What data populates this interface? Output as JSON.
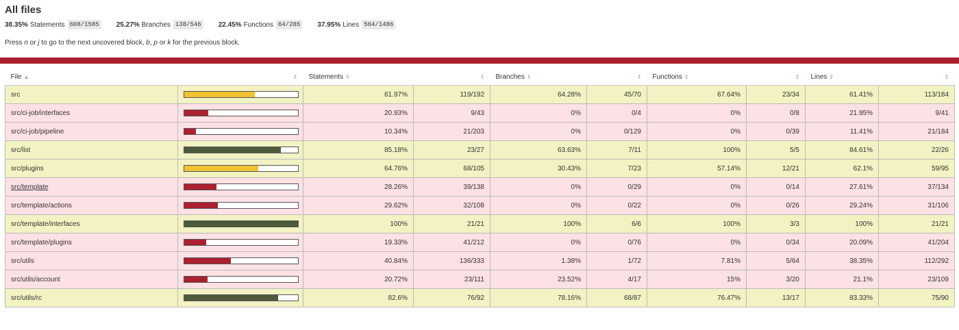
{
  "title": "All files",
  "summary": [
    {
      "pct": "38.35%",
      "label": "Statements",
      "frac": "608/1585"
    },
    {
      "pct": "25.27%",
      "label": "Branches",
      "frac": "138/546"
    },
    {
      "pct": "22.45%",
      "label": "Functions",
      "frac": "64/285"
    },
    {
      "pct": "37.95%",
      "label": "Lines",
      "frac": "564/1486"
    }
  ],
  "hint": {
    "t1": "Press ",
    "k1": "n",
    "t2": " or ",
    "k2": "j",
    "t3": " to go to the next uncovered block, ",
    "k3": "b",
    "t4": ", ",
    "k4": "p",
    "t5": " or ",
    "k5": "k",
    "t6": " for the previous block."
  },
  "columns": {
    "file": "File",
    "statements": "Statements",
    "branches": "Branches",
    "functions": "Functions",
    "lines": "Lines"
  },
  "colors": {
    "high_fill": "#4d5b3b",
    "medium_fill": "#f1c232",
    "low_fill": "#ab2130",
    "high_row": "#f2f2c3",
    "low_row": "#fce1e5",
    "divider": "#ab2130"
  },
  "rows": [
    {
      "file": "src",
      "level": "medium",
      "bar": 0.6197,
      "stmt_pct": "61.97%",
      "stmt_frac": "119/192",
      "br_pct": "64.28%",
      "br_frac": "45/70",
      "fn_pct": "67.64%",
      "fn_frac": "23/34",
      "ln_pct": "61.41%",
      "ln_frac": "113/184",
      "row": "high"
    },
    {
      "file": "src/ci-job/interfaces",
      "level": "low",
      "bar": 0.2093,
      "stmt_pct": "20.93%",
      "stmt_frac": "9/43",
      "br_pct": "0%",
      "br_frac": "0/4",
      "fn_pct": "0%",
      "fn_frac": "0/8",
      "ln_pct": "21.95%",
      "ln_frac": "9/41",
      "row": "low"
    },
    {
      "file": "src/ci-job/pipeline",
      "level": "low",
      "bar": 0.1034,
      "stmt_pct": "10.34%",
      "stmt_frac": "21/203",
      "br_pct": "0%",
      "br_frac": "0/129",
      "fn_pct": "0%",
      "fn_frac": "0/39",
      "ln_pct": "11.41%",
      "ln_frac": "21/184",
      "row": "low"
    },
    {
      "file": "src/list",
      "level": "high",
      "bar": 0.8518,
      "stmt_pct": "85.18%",
      "stmt_frac": "23/27",
      "br_pct": "63.63%",
      "br_frac": "7/11",
      "fn_pct": "100%",
      "fn_frac": "5/5",
      "ln_pct": "84.61%",
      "ln_frac": "22/26",
      "row": "high"
    },
    {
      "file": "src/plugins",
      "level": "medium",
      "bar": 0.6476,
      "stmt_pct": "64.76%",
      "stmt_frac": "68/105",
      "br_pct": "30.43%",
      "br_frac": "7/23",
      "fn_pct": "57.14%",
      "fn_frac": "12/21",
      "ln_pct": "62.1%",
      "ln_frac": "59/95",
      "row": "high"
    },
    {
      "file": "src/template",
      "level": "low",
      "bar": 0.2826,
      "stmt_pct": "28.26%",
      "stmt_frac": "39/138",
      "br_pct": "0%",
      "br_frac": "0/29",
      "fn_pct": "0%",
      "fn_frac": "0/14",
      "ln_pct": "27.61%",
      "ln_frac": "37/134",
      "row": "low",
      "underline": true
    },
    {
      "file": "src/template/actions",
      "level": "low",
      "bar": 0.2962,
      "stmt_pct": "29.62%",
      "stmt_frac": "32/108",
      "br_pct": "0%",
      "br_frac": "0/22",
      "fn_pct": "0%",
      "fn_frac": "0/26",
      "ln_pct": "29.24%",
      "ln_frac": "31/106",
      "row": "low"
    },
    {
      "file": "src/template/interfaces",
      "level": "high",
      "bar": 1.0,
      "stmt_pct": "100%",
      "stmt_frac": "21/21",
      "br_pct": "100%",
      "br_frac": "6/6",
      "fn_pct": "100%",
      "fn_frac": "3/3",
      "ln_pct": "100%",
      "ln_frac": "21/21",
      "row": "high"
    },
    {
      "file": "src/template/plugins",
      "level": "low",
      "bar": 0.1933,
      "stmt_pct": "19.33%",
      "stmt_frac": "41/212",
      "br_pct": "0%",
      "br_frac": "0/76",
      "fn_pct": "0%",
      "fn_frac": "0/34",
      "ln_pct": "20.09%",
      "ln_frac": "41/204",
      "row": "low"
    },
    {
      "file": "src/utils",
      "level": "low",
      "bar": 0.4084,
      "stmt_pct": "40.84%",
      "stmt_frac": "136/333",
      "br_pct": "1.38%",
      "br_frac": "1/72",
      "fn_pct": "7.81%",
      "fn_frac": "5/64",
      "ln_pct": "38.35%",
      "ln_frac": "112/292",
      "row": "low"
    },
    {
      "file": "src/utils/account",
      "level": "low",
      "bar": 0.2072,
      "stmt_pct": "20.72%",
      "stmt_frac": "23/111",
      "br_pct": "23.52%",
      "br_frac": "4/17",
      "fn_pct": "15%",
      "fn_frac": "3/20",
      "ln_pct": "21.1%",
      "ln_frac": "23/109",
      "row": "low"
    },
    {
      "file": "src/utils/rc",
      "level": "high",
      "bar": 0.826,
      "stmt_pct": "82.6%",
      "stmt_frac": "76/92",
      "br_pct": "78.16%",
      "br_frac": "68/87",
      "fn_pct": "76.47%",
      "fn_frac": "13/17",
      "ln_pct": "83.33%",
      "ln_frac": "75/90",
      "row": "high"
    }
  ]
}
